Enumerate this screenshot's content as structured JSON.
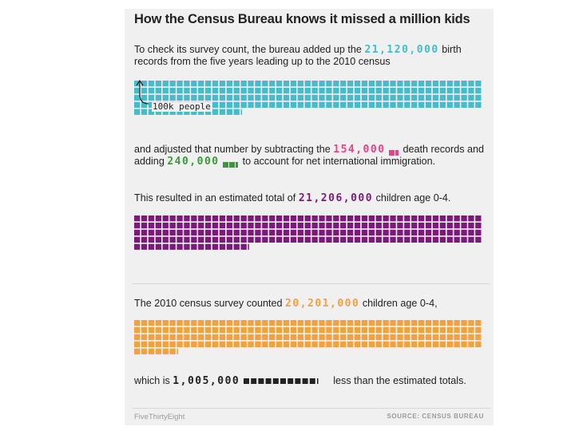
{
  "title": "How the Census Bureau knows it missed a million kids",
  "colors": {
    "births": "#45bcc9",
    "deaths": "#e8438a",
    "immigration": "#3a9a3a",
    "estimate": "#7c1a7c",
    "census": "#f2a140",
    "gap": "#222222"
  },
  "para1": {
    "pre": "To check its survey count, the bureau added up the",
    "value": "21,120,000",
    "post": "birth records from the five years leading up to the 2010 census"
  },
  "annotation": "100k people",
  "para2": {
    "pre": "and adjusted that number by subtracting the",
    "deaths_value": "154,000",
    "mid": "death records and adding",
    "immigration_value": "240,000",
    "post": "to account for net international immigration."
  },
  "para3": {
    "pre": "This resulted in an estimated total of",
    "value": "21,206,000",
    "post": "children age 0-4."
  },
  "para4": {
    "pre": "The 2010 census survey counted",
    "value": "20,201,000",
    "post": "children age 0-4,"
  },
  "para5": {
    "pre": "which is",
    "value": "1,005,000",
    "post": "less than the estimated totals."
  },
  "footer": {
    "brand": "FiveThirtyEight",
    "source": "SOURCE: CENSUS BUREAU"
  },
  "chart_data": {
    "type": "waffle",
    "unit_people": 100000,
    "series": [
      {
        "name": "birth records",
        "value": 21120000
      },
      {
        "name": "death records",
        "value": 154000
      },
      {
        "name": "net international immigration",
        "value": 240000
      },
      {
        "name": "estimated total children age 0-4",
        "value": 21206000
      },
      {
        "name": "census survey count children age 0-4",
        "value": 20201000
      },
      {
        "name": "undercount",
        "value": 1005000
      }
    ]
  }
}
